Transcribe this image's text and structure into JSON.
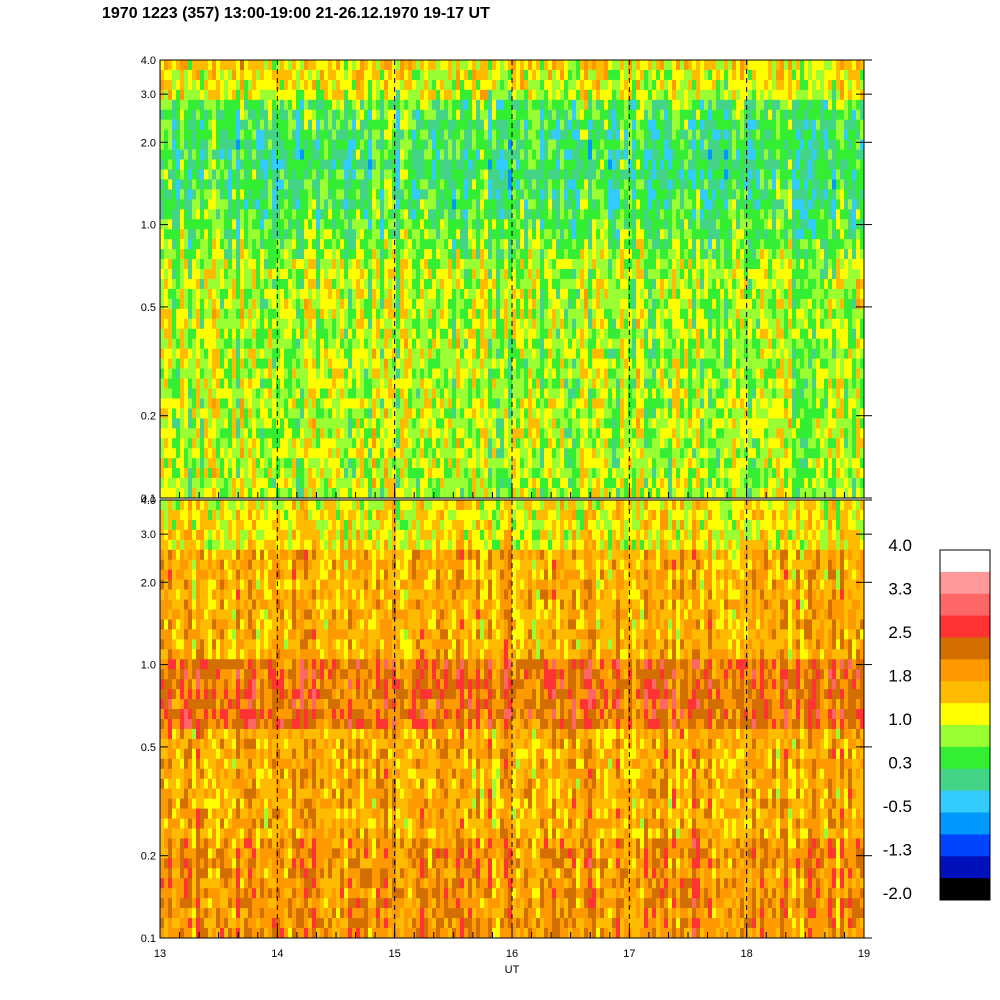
{
  "title": "1970 1223 (357) 13:00-19:00 21-26.12.1970  19-17 UT",
  "chart_data": [
    {
      "type": "heatmap",
      "panel": "upper",
      "x_range": [
        13,
        19
      ],
      "y_range": [
        0.1,
        4.0
      ],
      "y_scale": "log",
      "y_ticks": [
        "0.1",
        "0.2",
        "0.5",
        "1.0",
        "2.0",
        "3.0",
        "4.0"
      ],
      "dashed_vertical_lines_at": [
        14,
        15,
        16,
        17,
        18
      ]
    },
    {
      "type": "heatmap",
      "panel": "lower",
      "x_range": [
        13,
        19
      ],
      "y_range": [
        0.1,
        4.0
      ],
      "y_scale": "log",
      "y_ticks": [
        "0.1",
        "0.2",
        "0.5",
        "1.0",
        "2.0",
        "3.0",
        "4.0"
      ],
      "x_ticks": [
        "13",
        "14",
        "15",
        "16",
        "17",
        "18",
        "19"
      ],
      "xlabel": "UT",
      "dashed_vertical_lines_at": [
        14,
        15,
        16,
        17,
        18
      ]
    }
  ],
  "colorbar": {
    "labels": [
      "4.0",
      "3.3",
      "2.5",
      "1.8",
      "1.0",
      "0.3",
      "-0.5",
      "-1.3",
      "-2.0"
    ],
    "colors": [
      "#ffffff",
      "#ff9999",
      "#ff6666",
      "#ff3333",
      "#d26f00",
      "#ff9900",
      "#ffbb00",
      "#ffff00",
      "#99ff33",
      "#33ee33",
      "#44d488",
      "#33ccff",
      "#0099ff",
      "#0044ff",
      "#0011bb",
      "#000000"
    ]
  }
}
